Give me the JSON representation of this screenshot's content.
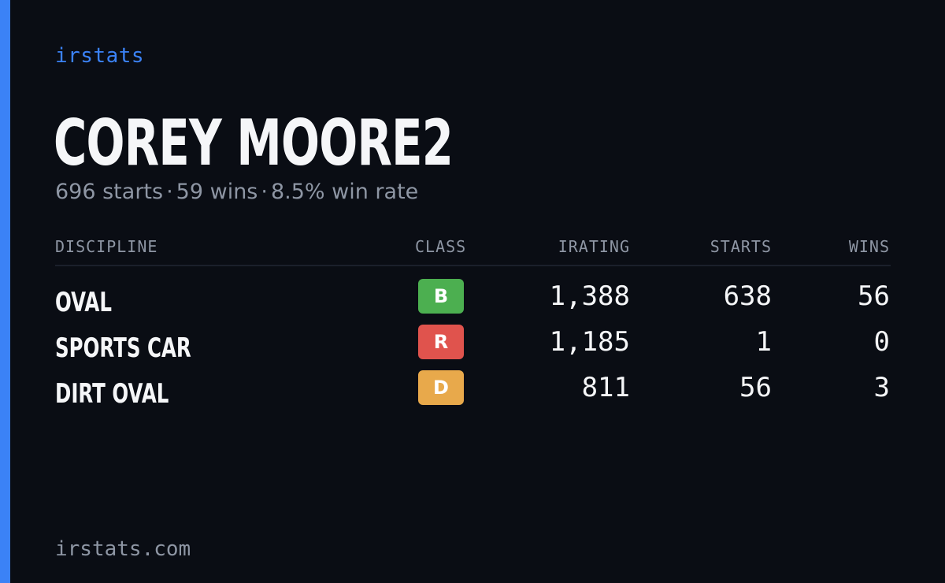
{
  "brand": "irstats",
  "player": {
    "name": "COREY MOORE2"
  },
  "summary": {
    "starts": "696 starts",
    "wins": "59 wins",
    "win_rate": "8.5% win rate",
    "separator": "·"
  },
  "table": {
    "headers": {
      "discipline": "DISCIPLINE",
      "class": "CLASS",
      "irating": "IRATING",
      "starts": "STARTS",
      "wins": "WINS"
    },
    "rows": [
      {
        "discipline": "OVAL",
        "class": "B",
        "class_color": "#4caf50",
        "irating": "1,388",
        "starts": "638",
        "wins": "56"
      },
      {
        "discipline": "SPORTS CAR",
        "class": "R",
        "class_color": "#e0534d",
        "irating": "1,185",
        "starts": "1",
        "wins": "0"
      },
      {
        "discipline": "DIRT OVAL",
        "class": "D",
        "class_color": "#e8a94b",
        "irating": "811",
        "starts": "56",
        "wins": "3"
      }
    ]
  },
  "footer": {
    "url": "irstats.com"
  },
  "colors": {
    "background": "#0a0d14",
    "accent": "#3b82f6",
    "text_primary": "#f5f6f8",
    "text_muted": "#8e96a4"
  }
}
